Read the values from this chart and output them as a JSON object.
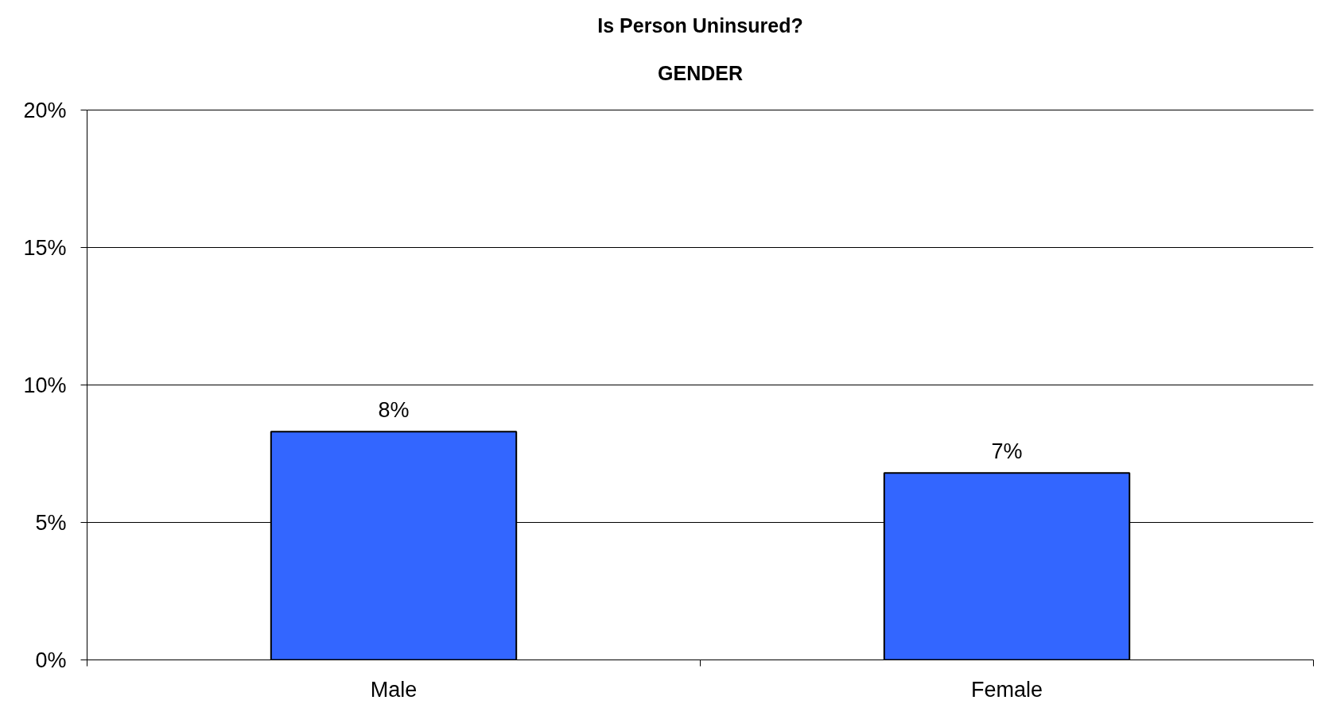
{
  "chart_data": {
    "type": "bar",
    "title": "Is Person Uninsured?",
    "subtitle": "GENDER",
    "categories": [
      "Male",
      "Female"
    ],
    "values": [
      8.3,
      6.8
    ],
    "value_labels": [
      "8%",
      "7%"
    ],
    "color": "#3366ff",
    "ylim": [
      0,
      20
    ],
    "yticks": [
      {
        "value": 0,
        "label": "0%"
      },
      {
        "value": 5,
        "label": "5%"
      },
      {
        "value": 10,
        "label": "10%"
      },
      {
        "value": 15,
        "label": "15%"
      },
      {
        "value": 20,
        "label": "20%"
      }
    ],
    "grid": "y"
  }
}
